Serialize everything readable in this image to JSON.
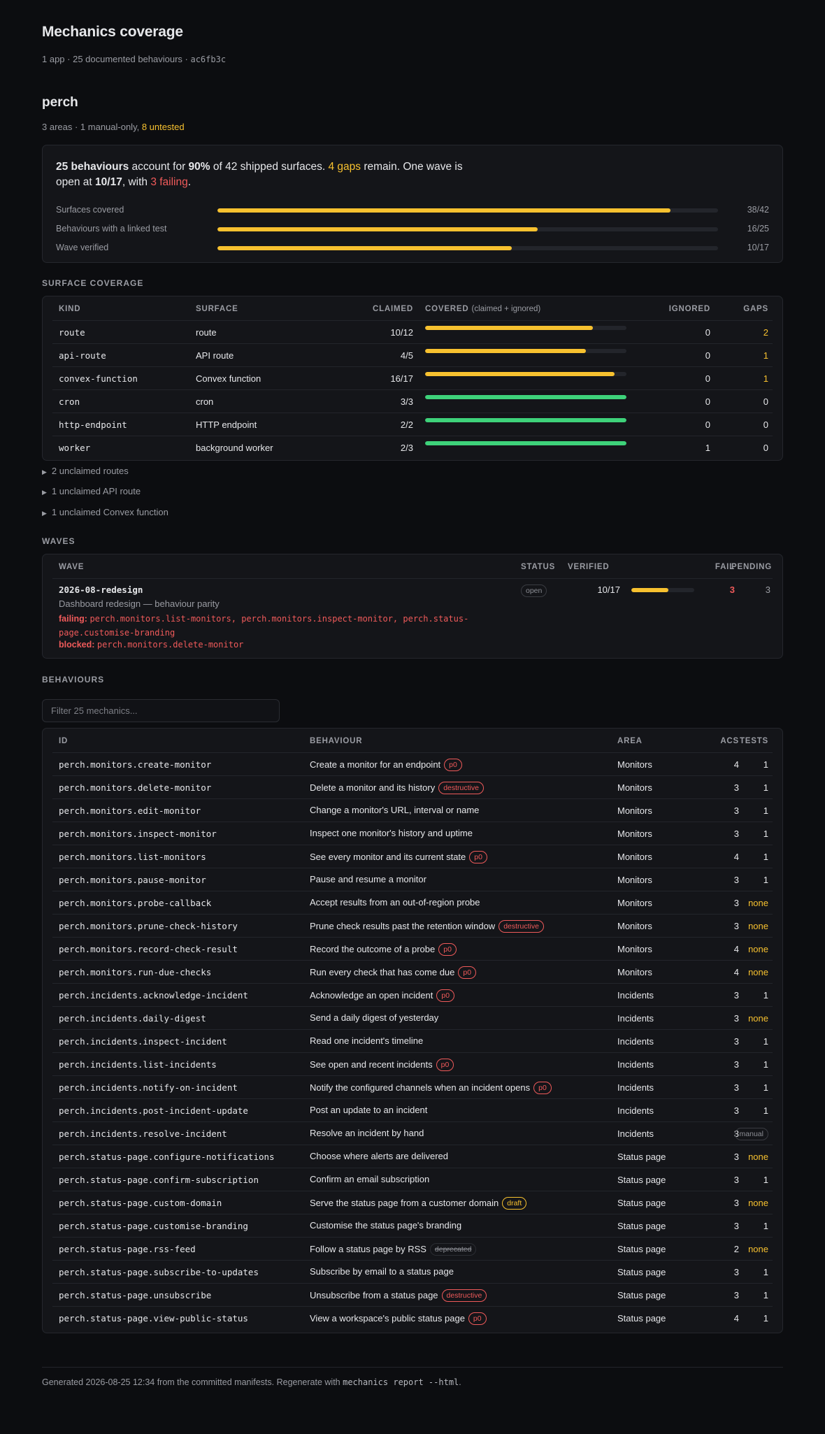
{
  "page": {
    "title": "Mechanics coverage",
    "subtitle_text": "1 app · 25 documented behaviours · ",
    "commit": "ac6fb3c"
  },
  "app": {
    "name": "perch",
    "subtitle_text": "3 areas · 1 manual-only, ",
    "untested": "8 untested"
  },
  "summary": {
    "behaviours_count": "25 behaviours",
    "t1": " account for ",
    "pct": "90%",
    "t2": " of 42 shipped surfaces. ",
    "gaps": "4 gaps",
    "t3": " remain. One wave is open at ",
    "wave_ratio": "10/17",
    "t4": ", with ",
    "failing": "3 failing",
    "t5": ".",
    "meters": [
      {
        "label": "Surfaces covered",
        "value": "38/42",
        "fraction": 0.905
      },
      {
        "label": "Behaviours with a linked test",
        "value": "16/25",
        "fraction": 0.64
      },
      {
        "label": "Wave verified",
        "value": "10/17",
        "fraction": 0.588
      }
    ]
  },
  "surface_coverage": {
    "heading": "SURFACE COVERAGE",
    "columns": {
      "kind": "KIND",
      "surface": "SURFACE",
      "claimed": "CLAIMED",
      "covered": "COVERED",
      "covered_note": "(claimed + ignored)",
      "ignored": "IGNORED",
      "gaps": "GAPS"
    },
    "rows": [
      {
        "kind": "route",
        "surface": "route",
        "claimed": "10/12",
        "fraction": 0.833,
        "complete": false,
        "ignored": "0",
        "gaps": "2"
      },
      {
        "kind": "api-route",
        "surface": "API route",
        "claimed": "4/5",
        "fraction": 0.8,
        "complete": false,
        "ignored": "0",
        "gaps": "1"
      },
      {
        "kind": "convex-function",
        "surface": "Convex function",
        "claimed": "16/17",
        "fraction": 0.941,
        "complete": false,
        "ignored": "0",
        "gaps": "1"
      },
      {
        "kind": "cron",
        "surface": "cron",
        "claimed": "3/3",
        "fraction": 1.0,
        "complete": true,
        "ignored": "0",
        "gaps": "0"
      },
      {
        "kind": "http-endpoint",
        "surface": "HTTP endpoint",
        "claimed": "2/2",
        "fraction": 1.0,
        "complete": true,
        "ignored": "0",
        "gaps": "0"
      },
      {
        "kind": "worker",
        "surface": "background worker",
        "claimed": "2/3",
        "fraction": 1.0,
        "complete": true,
        "ignored": "1",
        "gaps": "0"
      }
    ],
    "unclaimed": [
      "2 unclaimed routes",
      "1 unclaimed API route",
      "1 unclaimed Convex function"
    ]
  },
  "waves": {
    "heading": "WAVES",
    "columns": {
      "wave": "WAVE",
      "status": "STATUS",
      "verified": "VERIFIED",
      "fail": "FAIL",
      "pending": "PENDING"
    },
    "rows": [
      {
        "id": "2026-08-redesign",
        "description": "Dashboard redesign — behaviour parity",
        "failing_label": "failing:",
        "failing_items": "perch.monitors.list-monitors, perch.monitors.inspect-monitor, perch.status-page.customise-branding",
        "blocked_label": "blocked:",
        "blocked_items": "perch.monitors.delete-monitor",
        "status": "open",
        "verified": "10/17",
        "verified_fraction": 0.588,
        "fail": "3",
        "pending": "3"
      }
    ]
  },
  "behaviours": {
    "heading": "BEHAVIOURS",
    "filter_placeholder": "Filter 25 mechanics...",
    "columns": {
      "id": "ID",
      "behaviour": "BEHAVIOUR",
      "area": "AREA",
      "acs": "ACS",
      "tests": "TESTS"
    },
    "rows": [
      {
        "id": "perch.monitors.create-monitor",
        "text": "Create a monitor for an endpoint",
        "tag": "p0",
        "tag_style": "red",
        "area": "Monitors",
        "acs": "4",
        "tests": "1",
        "tests_style": "plain"
      },
      {
        "id": "perch.monitors.delete-monitor",
        "text": "Delete a monitor and its history",
        "tag": "destructive",
        "tag_style": "red",
        "area": "Monitors",
        "acs": "3",
        "tests": "1",
        "tests_style": "plain"
      },
      {
        "id": "perch.monitors.edit-monitor",
        "text": "Change a monitor's URL, interval or name",
        "tag": "",
        "tag_style": "",
        "area": "Monitors",
        "acs": "3",
        "tests": "1",
        "tests_style": "plain"
      },
      {
        "id": "perch.monitors.inspect-monitor",
        "text": "Inspect one monitor's history and uptime",
        "tag": "",
        "tag_style": "",
        "area": "Monitors",
        "acs": "3",
        "tests": "1",
        "tests_style": "plain"
      },
      {
        "id": "perch.monitors.list-monitors",
        "text": "See every monitor and its current state",
        "tag": "p0",
        "tag_style": "red",
        "area": "Monitors",
        "acs": "4",
        "tests": "1",
        "tests_style": "plain"
      },
      {
        "id": "perch.monitors.pause-monitor",
        "text": "Pause and resume a monitor",
        "tag": "",
        "tag_style": "",
        "area": "Monitors",
        "acs": "3",
        "tests": "1",
        "tests_style": "plain"
      },
      {
        "id": "perch.monitors.probe-callback",
        "text": "Accept results from an out-of-region probe",
        "tag": "",
        "tag_style": "",
        "area": "Monitors",
        "acs": "3",
        "tests": "none",
        "tests_style": "none"
      },
      {
        "id": "perch.monitors.prune-check-history",
        "text": "Prune check results past the retention window",
        "tag": "destructive",
        "tag_style": "red",
        "area": "Monitors",
        "acs": "3",
        "tests": "none",
        "tests_style": "none"
      },
      {
        "id": "perch.monitors.record-check-result",
        "text": "Record the outcome of a probe",
        "tag": "p0",
        "tag_style": "red",
        "area": "Monitors",
        "acs": "4",
        "tests": "none",
        "tests_style": "none"
      },
      {
        "id": "perch.monitors.run-due-checks",
        "text": "Run every check that has come due",
        "tag": "p0",
        "tag_style": "red",
        "area": "Monitors",
        "acs": "4",
        "tests": "none",
        "tests_style": "none"
      },
      {
        "id": "perch.incidents.acknowledge-incident",
        "text": "Acknowledge an open incident",
        "tag": "p0",
        "tag_style": "red",
        "area": "Incidents",
        "acs": "3",
        "tests": "1",
        "tests_style": "plain"
      },
      {
        "id": "perch.incidents.daily-digest",
        "text": "Send a daily digest of yesterday",
        "tag": "",
        "tag_style": "",
        "area": "Incidents",
        "acs": "3",
        "tests": "none",
        "tests_style": "none"
      },
      {
        "id": "perch.incidents.inspect-incident",
        "text": "Read one incident's timeline",
        "tag": "",
        "tag_style": "",
        "area": "Incidents",
        "acs": "3",
        "tests": "1",
        "tests_style": "plain"
      },
      {
        "id": "perch.incidents.list-incidents",
        "text": "See open and recent incidents",
        "tag": "p0",
        "tag_style": "red",
        "area": "Incidents",
        "acs": "3",
        "tests": "1",
        "tests_style": "plain"
      },
      {
        "id": "perch.incidents.notify-on-incident",
        "text": "Notify the configured channels when an incident opens",
        "tag": "p0",
        "tag_style": "red",
        "area": "Incidents",
        "acs": "3",
        "tests": "1",
        "tests_style": "plain"
      },
      {
        "id": "perch.incidents.post-incident-update",
        "text": "Post an update to an incident",
        "tag": "",
        "tag_style": "",
        "area": "Incidents",
        "acs": "3",
        "tests": "1",
        "tests_style": "plain"
      },
      {
        "id": "perch.incidents.resolve-incident",
        "text": "Resolve an incident by hand",
        "tag": "",
        "tag_style": "",
        "area": "Incidents",
        "acs": "3",
        "tests": "manual",
        "tests_style": "manual"
      },
      {
        "id": "perch.status-page.configure-notifications",
        "text": "Choose where alerts are delivered",
        "tag": "",
        "tag_style": "",
        "area": "Status page",
        "acs": "3",
        "tests": "none",
        "tests_style": "none"
      },
      {
        "id": "perch.status-page.confirm-subscription",
        "text": "Confirm an email subscription",
        "tag": "",
        "tag_style": "",
        "area": "Status page",
        "acs": "3",
        "tests": "1",
        "tests_style": "plain"
      },
      {
        "id": "perch.status-page.custom-domain",
        "text": "Serve the status page from a customer domain",
        "tag": "draft",
        "tag_style": "yellow",
        "area": "Status page",
        "acs": "3",
        "tests": "none",
        "tests_style": "none"
      },
      {
        "id": "perch.status-page.customise-branding",
        "text": "Customise the status page's branding",
        "tag": "",
        "tag_style": "",
        "area": "Status page",
        "acs": "3",
        "tests": "1",
        "tests_style": "plain"
      },
      {
        "id": "perch.status-page.rss-feed",
        "text": "Follow a status page by RSS",
        "tag": "deprecated",
        "tag_style": "dep",
        "area": "Status page",
        "acs": "2",
        "tests": "none",
        "tests_style": "none"
      },
      {
        "id": "perch.status-page.subscribe-to-updates",
        "text": "Subscribe by email to a status page",
        "tag": "",
        "tag_style": "",
        "area": "Status page",
        "acs": "3",
        "tests": "1",
        "tests_style": "plain"
      },
      {
        "id": "perch.status-page.unsubscribe",
        "text": "Unsubscribe from a status page",
        "tag": "destructive",
        "tag_style": "red",
        "area": "Status page",
        "acs": "3",
        "tests": "1",
        "tests_style": "plain"
      },
      {
        "id": "perch.status-page.view-public-status",
        "text": "View a workspace's public status page",
        "tag": "p0",
        "tag_style": "red",
        "area": "Status page",
        "acs": "4",
        "tests": "1",
        "tests_style": "plain"
      }
    ]
  },
  "footer": {
    "text": "Generated 2026-08-25 12:34 from the committed manifests. Regenerate with ",
    "command": "mechanics report --html",
    "end": "."
  },
  "colors": {
    "accent": "#f7c12f",
    "success": "#3ed27a",
    "danger": "#ef5a5a",
    "background": "#0c0d10",
    "card": "#141519"
  }
}
